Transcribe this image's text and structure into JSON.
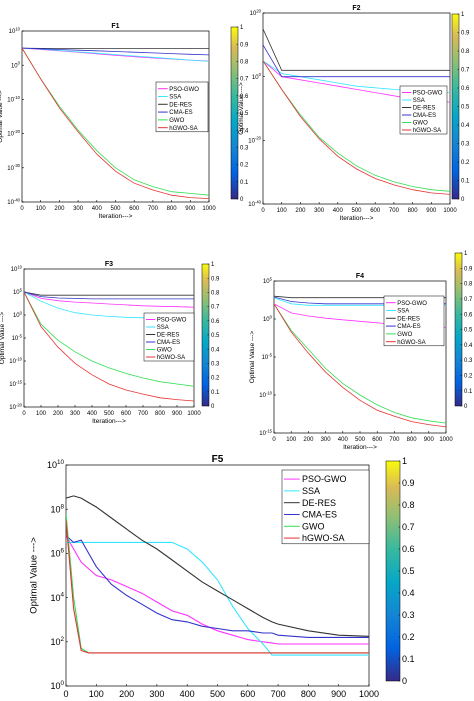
{
  "colors": {
    "PSO-GWO": "#ff33ff",
    "SSA": "#33e6ff",
    "DE-RES": "#333333",
    "CMA-ES": "#3333cc",
    "GWO": "#33dd55",
    "hGWO-SA": "#e63333"
  },
  "colorbar_ticks": [
    "0",
    "0.1",
    "0.2",
    "0.3",
    "0.4",
    "0.5",
    "0.6",
    "0.7",
    "0.8",
    "0.9",
    "1"
  ],
  "chart_data": [
    {
      "type": "line",
      "title": "F1",
      "xlabel": "Iteration--->",
      "ylabel": "Optimal Value --->",
      "yscale": "log",
      "xlim": [
        0,
        1000
      ],
      "ylim_exp": [
        -40,
        10
      ],
      "x": [
        0,
        100,
        200,
        300,
        400,
        500,
        600,
        700,
        800,
        900,
        1000
      ],
      "xticks": [
        "0",
        "100",
        "200",
        "300",
        "400",
        "500",
        "600",
        "700",
        "800",
        "900",
        "1000"
      ],
      "yticks": [
        {
          "exp": 10,
          "label": "10"
        },
        {
          "exp": 0,
          "label": "0"
        },
        {
          "exp": -10,
          "label": "-10"
        },
        {
          "exp": -20,
          "label": "-20"
        },
        {
          "exp": -30,
          "label": "-30"
        },
        {
          "exp": -40,
          "label": "-40"
        }
      ],
      "series": [
        {
          "name": "PSO-GWO",
          "log10": [
            5,
            4.6,
            4.2,
            3.8,
            3.3,
            2.9,
            2.5,
            2.1,
            1.8,
            1.5,
            1.2
          ]
        },
        {
          "name": "SSA",
          "log10": [
            5,
            4.7,
            4.3,
            3.9,
            3.5,
            3.1,
            2.7,
            2.3,
            1.9,
            1.5,
            1.1
          ]
        },
        {
          "name": "DE-RES",
          "log10": [
            5,
            4.9,
            4.9,
            4.9,
            4.9,
            4.9,
            4.9,
            4.9,
            4.9,
            4.9,
            4.9
          ]
        },
        {
          "name": "CMA-ES",
          "log10": [
            5,
            4.8,
            4.6,
            4.4,
            4.2,
            4.0,
            3.8,
            3.6,
            3.4,
            3.2,
            3.0
          ]
        },
        {
          "name": "GWO",
          "log10": [
            5,
            -4,
            -12,
            -19,
            -25,
            -30,
            -33.5,
            -35.5,
            -37,
            -37.5,
            -38
          ]
        },
        {
          "name": "hGWO-SA",
          "log10": [
            5,
            -4,
            -12.5,
            -19.5,
            -26,
            -31,
            -34.5,
            -36.5,
            -38,
            -38.7,
            -39
          ]
        }
      ],
      "legend": "right"
    },
    {
      "type": "line",
      "title": "F2",
      "xlabel": "Iteration--->",
      "ylabel": "Optimal Value --->",
      "yscale": "log",
      "xlim": [
        0,
        1000
      ],
      "ylim_exp": [
        -40,
        20
      ],
      "x": [
        0,
        100,
        200,
        300,
        400,
        500,
        600,
        700,
        800,
        900,
        1000
      ],
      "xticks": [
        "0",
        "100",
        "200",
        "300",
        "400",
        "500",
        "600",
        "700",
        "800",
        "900",
        "1000"
      ],
      "yticks": [
        {
          "exp": 20,
          "label": "20"
        },
        {
          "exp": 0,
          "label": "0"
        },
        {
          "exp": -20,
          "label": "-20"
        },
        {
          "exp": -40,
          "label": "-40"
        }
      ],
      "series": [
        {
          "name": "PSO-GWO",
          "log10": [
            5,
            0,
            -1,
            -2,
            -3,
            -4,
            -5,
            -6,
            -7,
            -7.5,
            -8
          ]
        },
        {
          "name": "SSA",
          "log10": [
            5,
            1,
            0,
            -1,
            -2,
            -3,
            -3.5,
            -4,
            -4.5,
            -5,
            -5
          ]
        },
        {
          "name": "DE-RES",
          "log10": [
            15,
            2,
            2,
            2,
            2,
            2,
            2,
            2,
            2,
            2,
            2
          ]
        },
        {
          "name": "CMA-ES",
          "log10": [
            10,
            0,
            0,
            0,
            0,
            0,
            0,
            0,
            0,
            0,
            0
          ]
        },
        {
          "name": "GWO",
          "log10": [
            5,
            -4,
            -12,
            -19,
            -24,
            -28,
            -31,
            -33,
            -34.5,
            -35.5,
            -36
          ]
        },
        {
          "name": "hGWO-SA",
          "log10": [
            5,
            -4,
            -12.5,
            -19.5,
            -25,
            -29,
            -32,
            -34,
            -35.5,
            -36.5,
            -37
          ]
        }
      ],
      "legend": "right"
    },
    {
      "type": "line",
      "title": "F3",
      "xlabel": "Iteration--->",
      "ylabel": "Optimal Value --->",
      "yscale": "log",
      "xlim": [
        0,
        1000
      ],
      "ylim_exp": [
        -20,
        10
      ],
      "x": [
        0,
        100,
        200,
        300,
        400,
        500,
        600,
        700,
        800,
        900,
        1000
      ],
      "xticks": [
        "0",
        "100",
        "200",
        "300",
        "400",
        "500",
        "600",
        "700",
        "800",
        "900",
        "1000"
      ],
      "yticks": [
        {
          "exp": 10,
          "label": "10"
        },
        {
          "exp": 5,
          "label": "5"
        },
        {
          "exp": 0,
          "label": "0"
        },
        {
          "exp": -5,
          "label": "-5"
        },
        {
          "exp": -10,
          "label": "-10"
        },
        {
          "exp": -15,
          "label": "-15"
        },
        {
          "exp": -20,
          "label": "-20"
        }
      ],
      "series": [
        {
          "name": "PSO-GWO",
          "log10": [
            5,
            3.6,
            3.1,
            2.8,
            2.6,
            2.4,
            2.2,
            2.0,
            1.9,
            1.8,
            1.7
          ]
        },
        {
          "name": "SSA",
          "log10": [
            5,
            3,
            1.5,
            0.5,
            0,
            -0.3,
            -0.5,
            -0.6,
            -0.7,
            -0.8,
            -0.9
          ]
        },
        {
          "name": "DE-RES",
          "log10": [
            5,
            4.3,
            4.3,
            4.3,
            4.3,
            4.3,
            4.3,
            4.3,
            4.3,
            4.3,
            4.3
          ]
        },
        {
          "name": "CMA-ES",
          "log10": [
            5,
            4,
            3.7,
            3.6,
            3.5,
            3.5,
            3.5,
            3.5,
            3.5,
            3.5,
            3.5
          ]
        },
        {
          "name": "GWO",
          "log10": [
            5,
            -2,
            -5.5,
            -8,
            -10,
            -11.5,
            -12.7,
            -13.7,
            -14.5,
            -15,
            -15.5
          ]
        },
        {
          "name": "hGWO-SA",
          "log10": [
            5,
            -2.5,
            -7,
            -10.5,
            -13,
            -15,
            -16.3,
            -17.2,
            -18,
            -18.4,
            -18.7
          ]
        }
      ],
      "legend": "right"
    },
    {
      "type": "line",
      "title": "F4",
      "xlabel": "Iteration--->",
      "ylabel": "Optimal Value --->",
      "yscale": "log",
      "xlim": [
        0,
        1000
      ],
      "ylim_exp": [
        -15,
        5
      ],
      "x": [
        0,
        100,
        200,
        300,
        400,
        500,
        600,
        700,
        800,
        900,
        1000
      ],
      "xticks": [
        "0",
        "100",
        "200",
        "300",
        "400",
        "500",
        "600",
        "700",
        "800",
        "900",
        "1000"
      ],
      "yticks": [
        {
          "exp": 5,
          "label": "5"
        },
        {
          "exp": 0,
          "label": "0"
        },
        {
          "exp": -5,
          "label": "-5"
        },
        {
          "exp": -10,
          "label": "-10"
        },
        {
          "exp": -15,
          "label": "-15"
        }
      ],
      "series": [
        {
          "name": "PSO-GWO",
          "log10": [
            2,
            0.8,
            0.4,
            0.1,
            -0.1,
            -0.3,
            -0.5,
            -0.7,
            -0.9,
            -1.0,
            -1.1
          ]
        },
        {
          "name": "SSA",
          "log10": [
            2.8,
            2.0,
            1.8,
            1.8,
            1.8,
            1.8,
            1.8,
            1.8,
            1.8,
            1.8,
            1.8
          ]
        },
        {
          "name": "DE-RES",
          "log10": [
            3,
            2.8,
            2.8,
            2.8,
            2.8,
            2.8,
            2.8,
            2.8,
            2.8,
            2.8,
            2.8
          ]
        },
        {
          "name": "CMA-ES",
          "log10": [
            2.9,
            2.3,
            2.1,
            2.0,
            2.0,
            2.0,
            2.0,
            2.0,
            2.0,
            2.0,
            2.0
          ]
        },
        {
          "name": "GWO",
          "log10": [
            2,
            -1.5,
            -4,
            -6.5,
            -8.5,
            -10,
            -11.3,
            -12.3,
            -13,
            -13.4,
            -13.7
          ]
        },
        {
          "name": "hGWO-SA",
          "log10": [
            2,
            -1.7,
            -4.5,
            -7,
            -9,
            -10.7,
            -12,
            -12.8,
            -13.5,
            -13.9,
            -14.2
          ]
        }
      ],
      "legend": "right"
    },
    {
      "type": "line",
      "title": "F5",
      "xlabel": "Iteration--->",
      "ylabel": "Optimal Value --->",
      "yscale": "log",
      "xlim": [
        0,
        1000
      ],
      "ylim_exp": [
        0,
        10
      ],
      "x": [
        0,
        25,
        50,
        75,
        100,
        150,
        200,
        250,
        300,
        350,
        400,
        450,
        500,
        550,
        600,
        650,
        680,
        700,
        800,
        900,
        1000
      ],
      "xticks": [
        "0",
        "100",
        "200",
        "300",
        "400",
        "500",
        "600",
        "700",
        "800",
        "900",
        "1000"
      ],
      "yticks": [
        {
          "exp": 10,
          "label": "10"
        },
        {
          "exp": 8,
          "label": "8"
        },
        {
          "exp": 6,
          "label": "6"
        },
        {
          "exp": 4,
          "label": "4"
        },
        {
          "exp": 2,
          "label": "2"
        },
        {
          "exp": 0,
          "label": "0"
        }
      ],
      "series": [
        {
          "name": "PSO-GWO",
          "log10": [
            6.8,
            6.2,
            5.6,
            5.3,
            5.0,
            4.8,
            4.5,
            4.2,
            3.8,
            3.4,
            3.2,
            2.8,
            2.5,
            2.3,
            2.1,
            2.0,
            1.95,
            1.9,
            1.9,
            1.9,
            1.9
          ]
        },
        {
          "name": "SSA",
          "log10": [
            6.5,
            6.5,
            6.5,
            6.5,
            6.5,
            6.5,
            6.5,
            6.5,
            6.5,
            6.5,
            6.2,
            5.6,
            4.8,
            3.6,
            2.6,
            1.9,
            1.4,
            1.4,
            1.4,
            1.4,
            1.4
          ]
        },
        {
          "name": "DE-RES",
          "log10": [
            8.5,
            8.6,
            8.5,
            8.3,
            8.1,
            7.6,
            7.1,
            6.6,
            6.2,
            5.7,
            5.2,
            4.7,
            4.3,
            3.9,
            3.5,
            3.1,
            2.9,
            2.8,
            2.5,
            2.3,
            2.25
          ]
        },
        {
          "name": "CMA-ES",
          "log10": [
            6.8,
            6.5,
            6.6,
            6.0,
            5.4,
            4.6,
            4.1,
            3.7,
            3.3,
            3.0,
            2.9,
            2.7,
            2.6,
            2.5,
            2.5,
            2.4,
            2.4,
            2.3,
            2.2,
            2.2,
            2.2
          ]
        },
        {
          "name": "GWO",
          "log10": [
            7.8,
            4,
            1.7,
            1.5,
            1.5,
            1.5,
            1.5,
            1.5,
            1.5,
            1.5,
            1.5,
            1.5,
            1.5,
            1.5,
            1.5,
            1.5,
            1.5,
            1.5,
            1.5,
            1.5,
            1.5
          ]
        },
        {
          "name": "hGWO-SA",
          "log10": [
            7.5,
            3.5,
            1.6,
            1.5,
            1.5,
            1.5,
            1.5,
            1.5,
            1.5,
            1.5,
            1.5,
            1.5,
            1.5,
            1.5,
            1.5,
            1.5,
            1.5,
            1.5,
            1.5,
            1.5,
            1.5
          ]
        }
      ],
      "legend": "top-right"
    }
  ]
}
